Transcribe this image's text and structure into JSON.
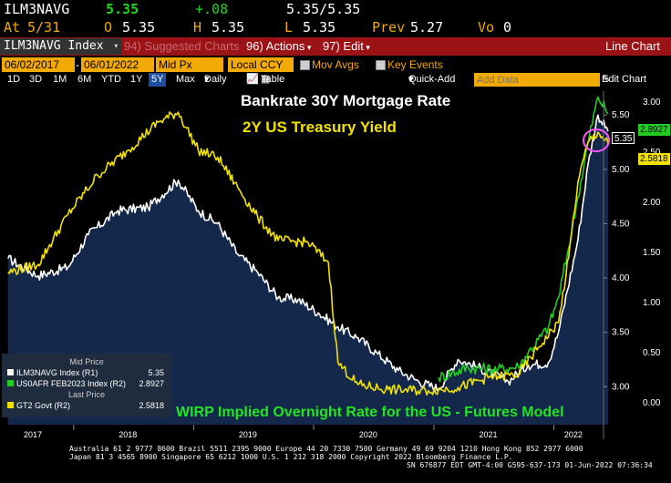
{
  "ticker": {
    "symbol": "ILM3NAVG",
    "last": "5.35",
    "change": "+.08",
    "bid_ask": "5.35/5.35",
    "date_label": "At",
    "date": "5/31",
    "open_label": "O",
    "open": "5.35",
    "high_label": "H",
    "high": "5.35",
    "low_label": "L",
    "low": "5.35",
    "prev_label": "Prev",
    "prev": "5.27",
    "vol_label": "Vo",
    "vol": "0"
  },
  "menubar": {
    "security": "ILM3NAVG Index",
    "suggested_num": "94",
    "suggested": "Suggested Charts",
    "actions_num": "96",
    "actions": "Actions",
    "edit_num": "97",
    "edit": "Edit",
    "title": "Line Chart"
  },
  "daterow": {
    "start": "06/02/2017",
    "end": "06/01/2022",
    "field": "Mid Px",
    "currency": "Local CCY",
    "mov_avgs": "Mov Avgs",
    "key_events": "Key Events"
  },
  "periodrow": {
    "periods": [
      "1D",
      "3D",
      "1M",
      "6M",
      "YTD",
      "1Y",
      "5Y",
      "Max"
    ],
    "selected": "5Y",
    "frequency": "Daily",
    "table": "Table",
    "quick_add": "Quick-Add",
    "add_data_placeholder": "Add Data",
    "edit_chart": "Edit Chart"
  },
  "legend": {
    "header1": "Mid Price",
    "row1_name": "ILM3NAVG Index  (R1)",
    "row1_value": "5.35",
    "row2_name": "US0AFR FEB2023 Index (R2)",
    "row2_value": "2.8927",
    "header2": "Last Price",
    "row3_name": "GT2 Govt   (R2)",
    "row3_value": "2.5818"
  },
  "annotations": {
    "mortgage": "Bankrate 30Y Mortgage Rate",
    "treasury": "2Y US Treasury Yield",
    "wirp": "WIRP Implied Overnight Rate for the US - Futures Model"
  },
  "right_labels": {
    "mortgage": "5.35",
    "wirp": "2.8927",
    "treasury": "2.5818"
  },
  "footer": {
    "line1": "Australia 61 2 9777 8600 Brazil 5511 2395 9000 Europe 44 20 7330 7500 Germany 49 69 9204 1210 Hong Kong 852 2977 6000",
    "line2": "Japan 81 3 4565 8900       Singapore 65 6212 1000       U.S. 1 212 318 2000         Copyright 2022 Bloomberg Finance L.P.",
    "line3": "SN 676877 EDT  GMT-4:00 G595-637-173 01-Jun-2022 07:36:34"
  },
  "colors": {
    "mortgage": "#ffffff",
    "wirp": "#22cc22",
    "treasury": "#f2e200",
    "area": "#13284a",
    "accent": "#f2a900",
    "menubar": "#9b1217"
  },
  "chart_data": {
    "type": "line",
    "x_axis": {
      "ticks": [
        "2017",
        "2018",
        "2019",
        "2020",
        "2021",
        "2022"
      ],
      "range": [
        "2017-06-02",
        "2022-06-01"
      ]
    },
    "axis_r1": {
      "ticks": [
        "3.00",
        "3.50",
        "4.00",
        "4.50",
        "5.00",
        "5.50"
      ],
      "range": [
        2.65,
        5.72
      ]
    },
    "axis_r2": {
      "ticks": [
        "0.00",
        "0.50",
        "1.00",
        "1.50",
        "2.00",
        "2.50",
        "3.00"
      ],
      "range": [
        -0.22,
        3.11
      ]
    },
    "series": [
      {
        "name": "ILM3NAVG Index",
        "axis": "R1",
        "area": true,
        "x": [
          "2017-06",
          "2017-09",
          "2017-12",
          "2018-02",
          "2018-05",
          "2018-08",
          "2018-11",
          "2019-01",
          "2019-03",
          "2019-05",
          "2019-07",
          "2019-09",
          "2019-11",
          "2020-01",
          "2020-03",
          "2020-05",
          "2020-07",
          "2020-09",
          "2020-11",
          "2021-01",
          "2021-03",
          "2021-05",
          "2021-08",
          "2021-10",
          "2021-12",
          "2022-01",
          "2022-03",
          "2022-04",
          "2022-05",
          "2022-06"
        ],
        "values": [
          4.18,
          4.02,
          4.1,
          4.4,
          4.62,
          4.65,
          4.9,
          4.62,
          4.5,
          4.22,
          4.05,
          3.82,
          3.8,
          3.68,
          3.55,
          3.45,
          3.3,
          3.15,
          3.05,
          2.98,
          3.25,
          3.18,
          3.05,
          3.2,
          3.22,
          3.5,
          4.35,
          5.05,
          5.5,
          5.35
        ]
      },
      {
        "name": "US0AFR FEB2023 Index",
        "axis": "R2",
        "x": [
          "2021-01",
          "2021-04",
          "2021-07",
          "2021-09",
          "2021-10",
          "2021-12",
          "2022-01",
          "2022-02",
          "2022-03",
          "2022-04",
          "2022-05",
          "2022-06"
        ],
        "values": [
          0.25,
          0.35,
          0.33,
          0.36,
          0.5,
          0.75,
          1.05,
          1.55,
          2.05,
          2.6,
          3.05,
          2.89
        ]
      },
      {
        "name": "GT2 Govt",
        "axis": "R2",
        "x": [
          "2017-06",
          "2017-09",
          "2017-12",
          "2018-03",
          "2018-06",
          "2018-09",
          "2018-11",
          "2019-01",
          "2019-03",
          "2019-05",
          "2019-07",
          "2019-09",
          "2019-12",
          "2020-02",
          "2020-03",
          "2020-05",
          "2020-08",
          "2020-12",
          "2021-03",
          "2021-06",
          "2021-09",
          "2021-11",
          "2022-01",
          "2022-02",
          "2022-03",
          "2022-04",
          "2022-05",
          "2022-06"
        ],
        "values": [
          1.3,
          1.38,
          1.88,
          2.27,
          2.52,
          2.8,
          2.9,
          2.52,
          2.45,
          2.15,
          1.85,
          1.62,
          1.6,
          1.4,
          0.4,
          0.18,
          0.13,
          0.12,
          0.15,
          0.25,
          0.28,
          0.55,
          0.8,
          1.45,
          2.2,
          2.6,
          2.7,
          2.58
        ]
      }
    ],
    "legend_position": "bottom-left",
    "grid": false
  }
}
